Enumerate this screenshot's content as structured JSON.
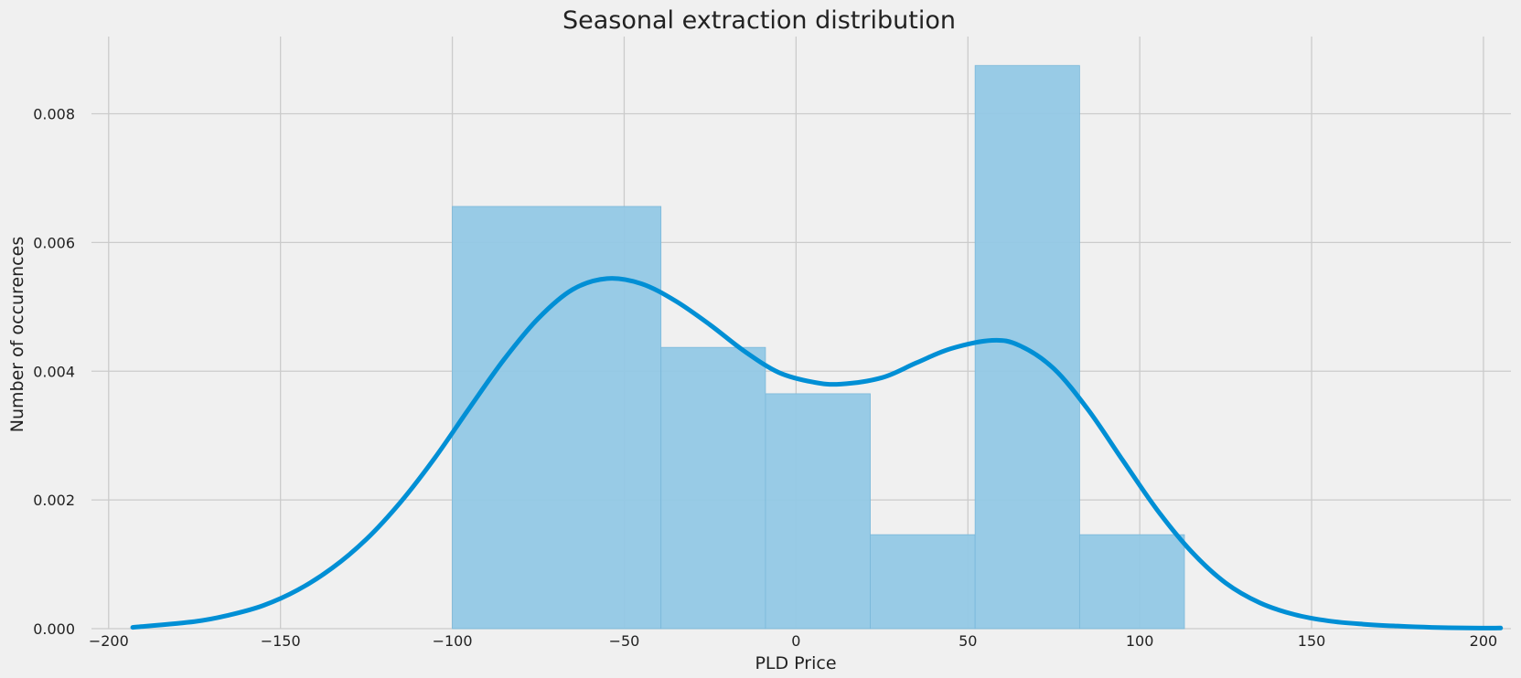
{
  "chart_data": {
    "type": "histogram",
    "title": "Seasonal extraction distribution",
    "xlabel": "PLD Price",
    "ylabel": "Number of occurences",
    "xlim": [
      -205,
      208
    ],
    "ylim": [
      0,
      0.0092
    ],
    "x_ticks": [
      -200,
      -150,
      -100,
      -50,
      0,
      50,
      100,
      150,
      200
    ],
    "y_ticks": [
      0,
      0.002,
      0.004,
      0.006,
      0.008
    ],
    "y_tick_labels": [
      "0.000",
      "0.002",
      "0.004",
      "0.006",
      "0.008"
    ],
    "grid": true,
    "bins": [
      {
        "x0": -100.0,
        "x1": -39.3,
        "value": 0.00656
      },
      {
        "x0": -39.3,
        "x1": -8.9,
        "value": 0.00437
      },
      {
        "x0": -8.9,
        "x1": 21.6,
        "value": 0.00365
      },
      {
        "x0": 21.6,
        "x1": 52.1,
        "value": 0.00146
      },
      {
        "x0": 52.1,
        "x1": 82.5,
        "value": 0.00875
      },
      {
        "x0": 82.5,
        "x1": 113.0,
        "value": 0.00146
      }
    ],
    "kde": {
      "x": [
        -193,
        -175,
        -165,
        -155,
        -145,
        -135,
        -125,
        -115,
        -105,
        -95,
        -85,
        -75,
        -65,
        -55,
        -45,
        -35,
        -25,
        -15,
        -5,
        5,
        13,
        25,
        35,
        45,
        57,
        65,
        75,
        85,
        95,
        105,
        115,
        125,
        135,
        145,
        155,
        165,
        175,
        185,
        196,
        205
      ],
      "y": [
        2e-05,
        0.00011,
        0.00021,
        0.00036,
        0.0006,
        0.00094,
        0.00139,
        0.00197,
        0.00266,
        0.00343,
        0.00418,
        0.00482,
        0.00527,
        0.00544,
        0.00536,
        0.00509,
        0.00472,
        0.00431,
        0.00398,
        0.00383,
        0.0038,
        0.0039,
        0.00413,
        0.00435,
        0.00448,
        0.0044,
        0.00404,
        0.0034,
        0.00262,
        0.00185,
        0.0012,
        0.00071,
        0.0004,
        0.00022,
        0.00012,
        7e-05,
        4e-05,
        2e-05,
        1e-05,
        1e-05
      ]
    },
    "colors": {
      "bar_fill": "#92c8e5",
      "line": "#008fd5",
      "grid": "#cbcbcb",
      "background": "#f0f0f0"
    }
  }
}
